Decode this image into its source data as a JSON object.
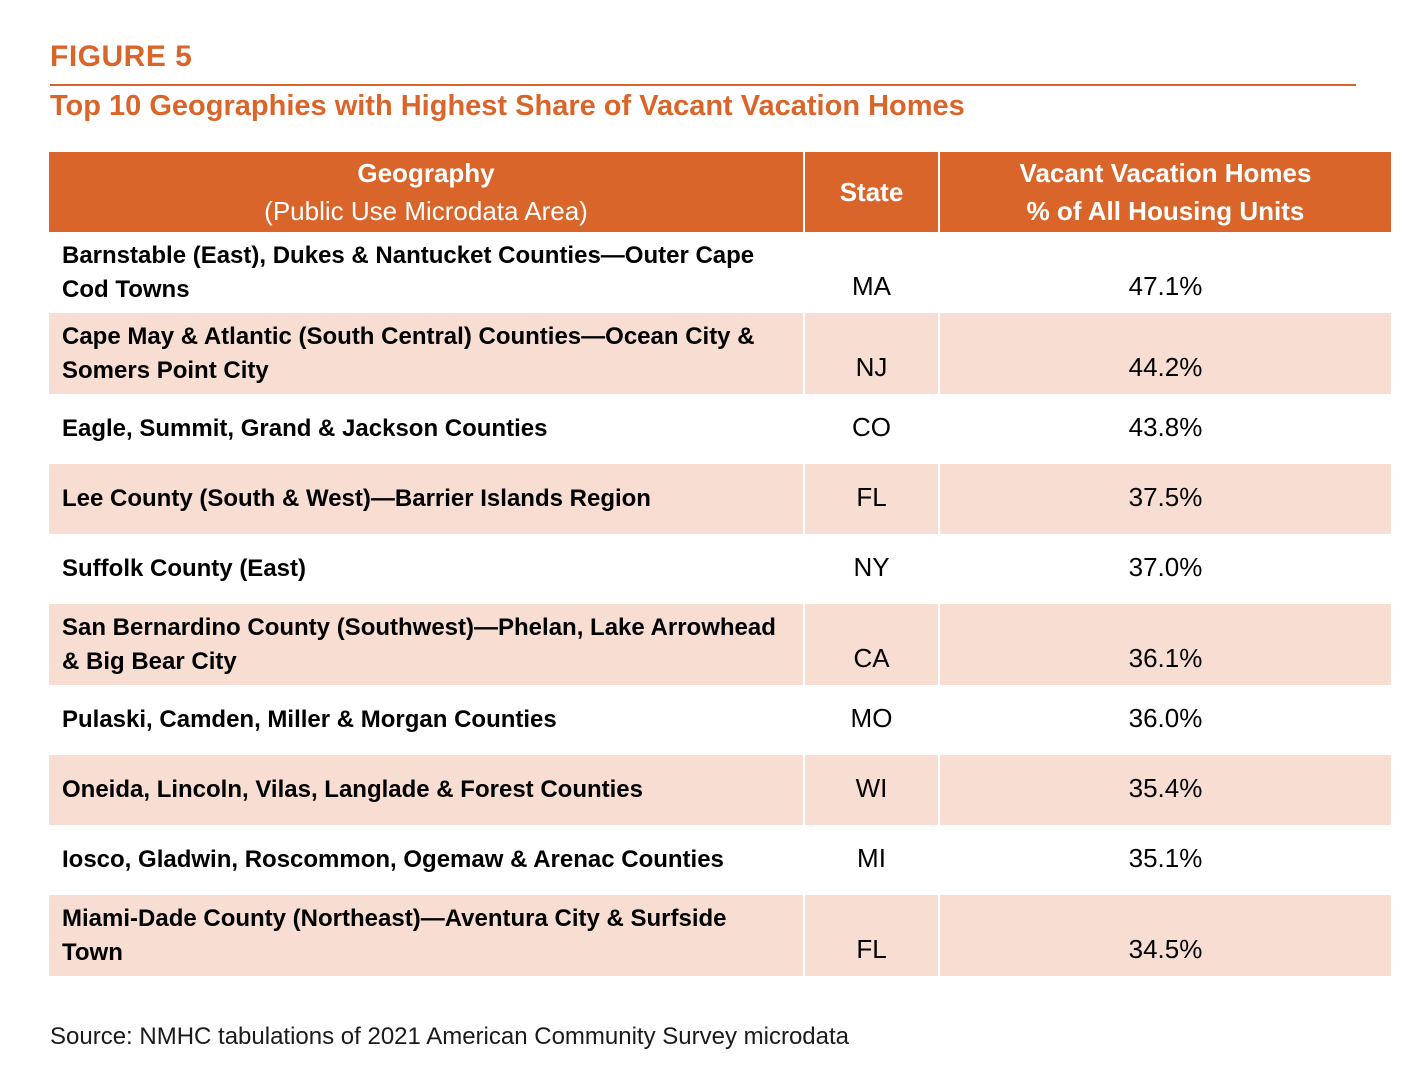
{
  "figure": {
    "label": "FIGURE 5",
    "title": "Top 10 Geographies with Highest Share of Vacant Vacation Homes"
  },
  "table": {
    "headers": {
      "geography": "Geography",
      "geography_sub": "(Public Use Microdata Area)",
      "state": "State",
      "share_line1": "Vacant Vacation Homes",
      "share_line2": "% of All Housing Units"
    },
    "rows": [
      {
        "geography": "Barnstable (East), Dukes & Nantucket Counties—Outer Cape Cod Towns",
        "state": "MA",
        "share": "47.1%"
      },
      {
        "geography": "Cape May & Atlantic (South Central) Counties—Ocean City & Somers Point City",
        "state": "NJ",
        "share": "44.2%"
      },
      {
        "geography": "Eagle, Summit, Grand & Jackson Counties",
        "state": "CO",
        "share": "43.8%"
      },
      {
        "geography": "Lee County (South & West)—Barrier Islands Region",
        "state": "FL",
        "share": "37.5%"
      },
      {
        "geography": "Suffolk County (East)",
        "state": "NY",
        "share": "37.0%"
      },
      {
        "geography": "San Bernardino County (Southwest)—Phelan, Lake Arrowhead & Big Bear City",
        "state": "CA",
        "share": "36.1%"
      },
      {
        "geography": "Pulaski, Camden, Miller & Morgan Counties",
        "state": "MO",
        "share": "36.0%"
      },
      {
        "geography": "Oneida, Lincoln, Vilas, Langlade & Forest Counties",
        "state": "WI",
        "share": "35.4%"
      },
      {
        "geography": "Iosco, Gladwin, Roscommon, Ogemaw & Arenac Counties",
        "state": "MI",
        "share": "35.1%"
      },
      {
        "geography": "Miami-Dade County (Northeast)—Aventura City & Surfside Town",
        "state": "FL",
        "share": "34.5%"
      }
    ]
  },
  "source": "Source: NMHC tabulations of 2021 American Community Survey microdata",
  "colors": {
    "accent": "#d9652a",
    "row_shade": "#f7ddd2"
  }
}
